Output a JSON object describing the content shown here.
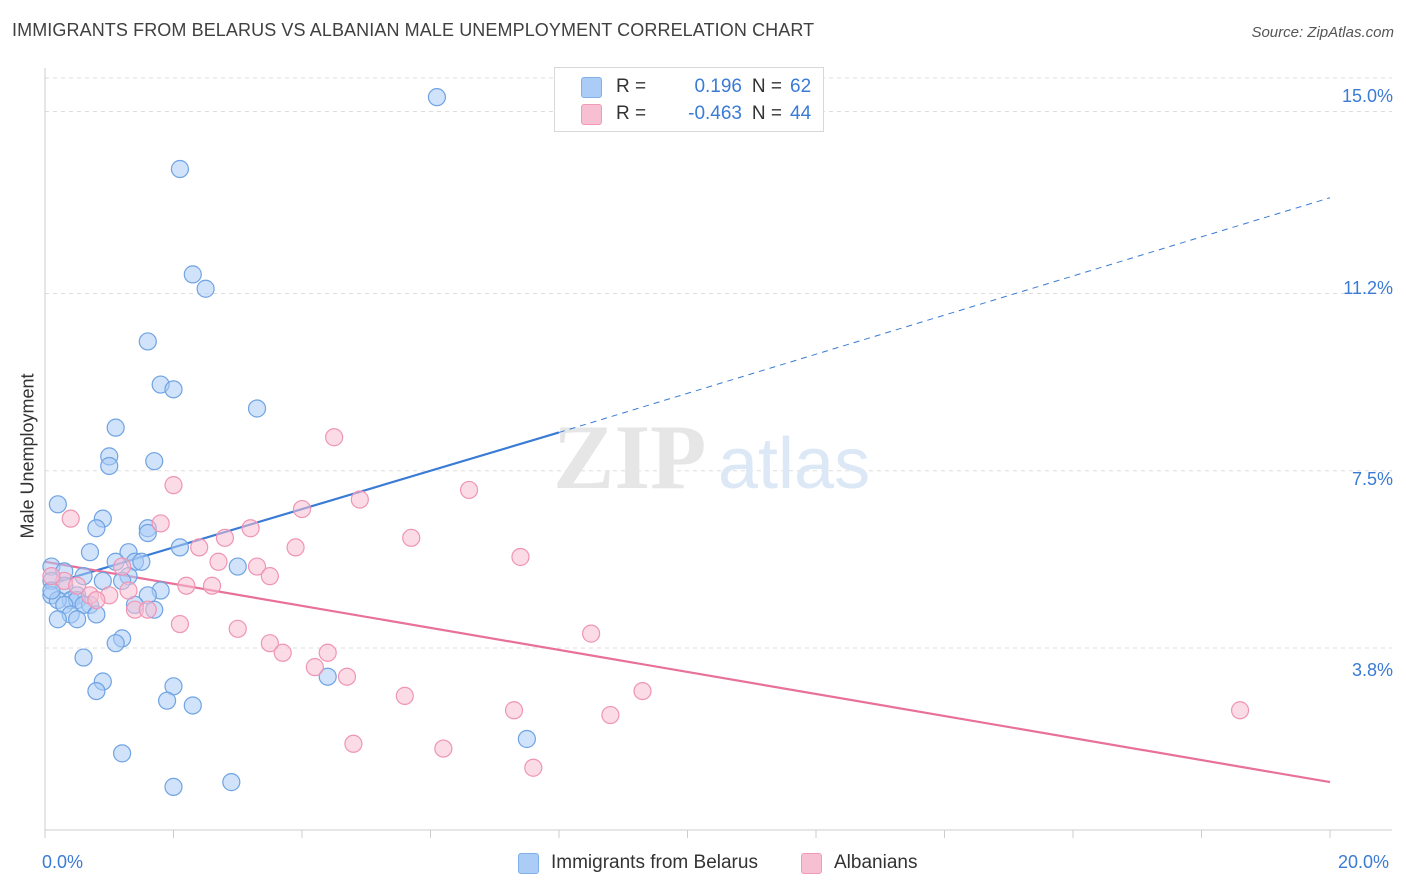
{
  "title": "IMMIGRANTS FROM BELARUS VS ALBANIAN MALE UNEMPLOYMENT CORRELATION CHART",
  "source": "Source: ZipAtlas.com",
  "watermark": "ZIPatlas",
  "colors": {
    "blue": "#3a7bd5",
    "blue_fill": "#aaccf5",
    "pink": "#e8709a",
    "pink_fill": "#f7bfd2",
    "tick_text": "#3a7bd5"
  },
  "legend": {
    "series1": {
      "r_label": "R =",
      "r_value": "0.196",
      "n_label": "N =",
      "n_value": "62"
    },
    "series2": {
      "r_label": "R =",
      "r_value": "-0.463",
      "n_label": "N =",
      "n_value": "44"
    }
  },
  "bottom_legend": [
    "Immigrants from Belarus",
    "Albanians"
  ],
  "chart_data": {
    "type": "scatter",
    "title": "IMMIGRANTS FROM BELARUS VS ALBANIAN MALE UNEMPLOYMENT CORRELATION CHART",
    "xlabel": "",
    "ylabel": "Male Unemployment",
    "xlim": [
      0,
      20
    ],
    "ylim": [
      0,
      15.7
    ],
    "x_tick_labels": [
      "0.0%",
      "20.0%"
    ],
    "y_ticks": [
      3.8,
      7.5,
      11.2,
      15.0
    ],
    "y_tick_labels": [
      "3.8%",
      "7.5%",
      "11.2%",
      "15.0%"
    ],
    "grid": "horizontal dashed",
    "legend_position": "top-center",
    "series": [
      {
        "name": "Immigrants from Belarus",
        "color": "#3a7bd5",
        "r": 0.196,
        "n": 62,
        "points": [
          [
            6.1,
            15.3
          ],
          [
            2.1,
            13.8
          ],
          [
            2.3,
            11.6
          ],
          [
            2.5,
            11.3
          ],
          [
            1.6,
            10.2
          ],
          [
            1.8,
            9.3
          ],
          [
            2.0,
            9.2
          ],
          [
            3.3,
            8.8
          ],
          [
            1.1,
            8.4
          ],
          [
            1.0,
            7.8
          ],
          [
            1.7,
            7.7
          ],
          [
            1.0,
            7.6
          ],
          [
            0.2,
            6.8
          ],
          [
            0.9,
            6.5
          ],
          [
            0.8,
            6.3
          ],
          [
            1.6,
            6.3
          ],
          [
            1.6,
            6.2
          ],
          [
            2.1,
            5.9
          ],
          [
            0.7,
            5.8
          ],
          [
            1.3,
            5.8
          ],
          [
            1.4,
            5.6
          ],
          [
            1.1,
            5.6
          ],
          [
            1.5,
            5.6
          ],
          [
            3.0,
            5.5
          ],
          [
            0.1,
            5.5
          ],
          [
            0.3,
            5.4
          ],
          [
            1.3,
            5.3
          ],
          [
            0.6,
            5.3
          ],
          [
            1.2,
            5.2
          ],
          [
            0.9,
            5.2
          ],
          [
            0.1,
            5.2
          ],
          [
            0.3,
            5.1
          ],
          [
            1.8,
            5.0
          ],
          [
            1.6,
            4.9
          ],
          [
            0.5,
            4.9
          ],
          [
            0.1,
            4.9
          ],
          [
            0.4,
            4.8
          ],
          [
            0.2,
            4.8
          ],
          [
            0.5,
            4.8
          ],
          [
            0.7,
            4.7
          ],
          [
            0.3,
            4.7
          ],
          [
            0.6,
            4.7
          ],
          [
            1.4,
            4.7
          ],
          [
            1.7,
            4.6
          ],
          [
            0.4,
            4.5
          ],
          [
            0.8,
            4.5
          ],
          [
            0.2,
            4.4
          ],
          [
            0.5,
            4.4
          ],
          [
            1.2,
            4.0
          ],
          [
            1.1,
            3.9
          ],
          [
            0.6,
            3.6
          ],
          [
            0.9,
            3.1
          ],
          [
            2.0,
            3.0
          ],
          [
            0.8,
            2.9
          ],
          [
            4.4,
            3.2
          ],
          [
            1.9,
            2.7
          ],
          [
            2.3,
            2.6
          ],
          [
            7.5,
            1.9
          ],
          [
            1.2,
            1.6
          ],
          [
            2.9,
            1.0
          ],
          [
            2.0,
            0.9
          ],
          [
            0.1,
            5.0
          ]
        ]
      },
      {
        "name": "Albanians",
        "color": "#e8709a",
        "r": -0.463,
        "n": 44,
        "points": [
          [
            4.5,
            8.2
          ],
          [
            2.0,
            7.2
          ],
          [
            6.6,
            7.1
          ],
          [
            4.9,
            6.9
          ],
          [
            4.0,
            6.7
          ],
          [
            0.4,
            6.5
          ],
          [
            1.8,
            6.4
          ],
          [
            3.2,
            6.3
          ],
          [
            2.8,
            6.1
          ],
          [
            5.7,
            6.1
          ],
          [
            2.4,
            5.9
          ],
          [
            3.9,
            5.9
          ],
          [
            7.4,
            5.7
          ],
          [
            2.7,
            5.6
          ],
          [
            3.3,
            5.5
          ],
          [
            1.2,
            5.5
          ],
          [
            3.5,
            5.3
          ],
          [
            0.3,
            5.2
          ],
          [
            2.2,
            5.1
          ],
          [
            2.6,
            5.1
          ],
          [
            0.5,
            5.1
          ],
          [
            1.3,
            5.0
          ],
          [
            0.7,
            4.9
          ],
          [
            1.0,
            4.9
          ],
          [
            0.8,
            4.8
          ],
          [
            1.4,
            4.6
          ],
          [
            1.6,
            4.6
          ],
          [
            2.1,
            4.3
          ],
          [
            3.0,
            4.2
          ],
          [
            8.5,
            4.1
          ],
          [
            3.5,
            3.9
          ],
          [
            3.7,
            3.7
          ],
          [
            4.4,
            3.7
          ],
          [
            4.2,
            3.4
          ],
          [
            4.7,
            3.2
          ],
          [
            9.3,
            2.9
          ],
          [
            5.6,
            2.8
          ],
          [
            7.3,
            2.5
          ],
          [
            8.8,
            2.4
          ],
          [
            18.6,
            2.5
          ],
          [
            4.8,
            1.8
          ],
          [
            6.2,
            1.7
          ],
          [
            7.6,
            1.3
          ],
          [
            0.1,
            5.3
          ]
        ]
      }
    ],
    "trendlines": [
      {
        "series": "Immigrants from Belarus",
        "from": [
          0,
          5.1
        ],
        "to": [
          8.0,
          8.3
        ],
        "dashed_to": [
          20.0,
          13.2
        ]
      },
      {
        "series": "Albanians",
        "from": [
          0,
          5.6
        ],
        "to": [
          20.0,
          1.0
        ]
      }
    ]
  }
}
